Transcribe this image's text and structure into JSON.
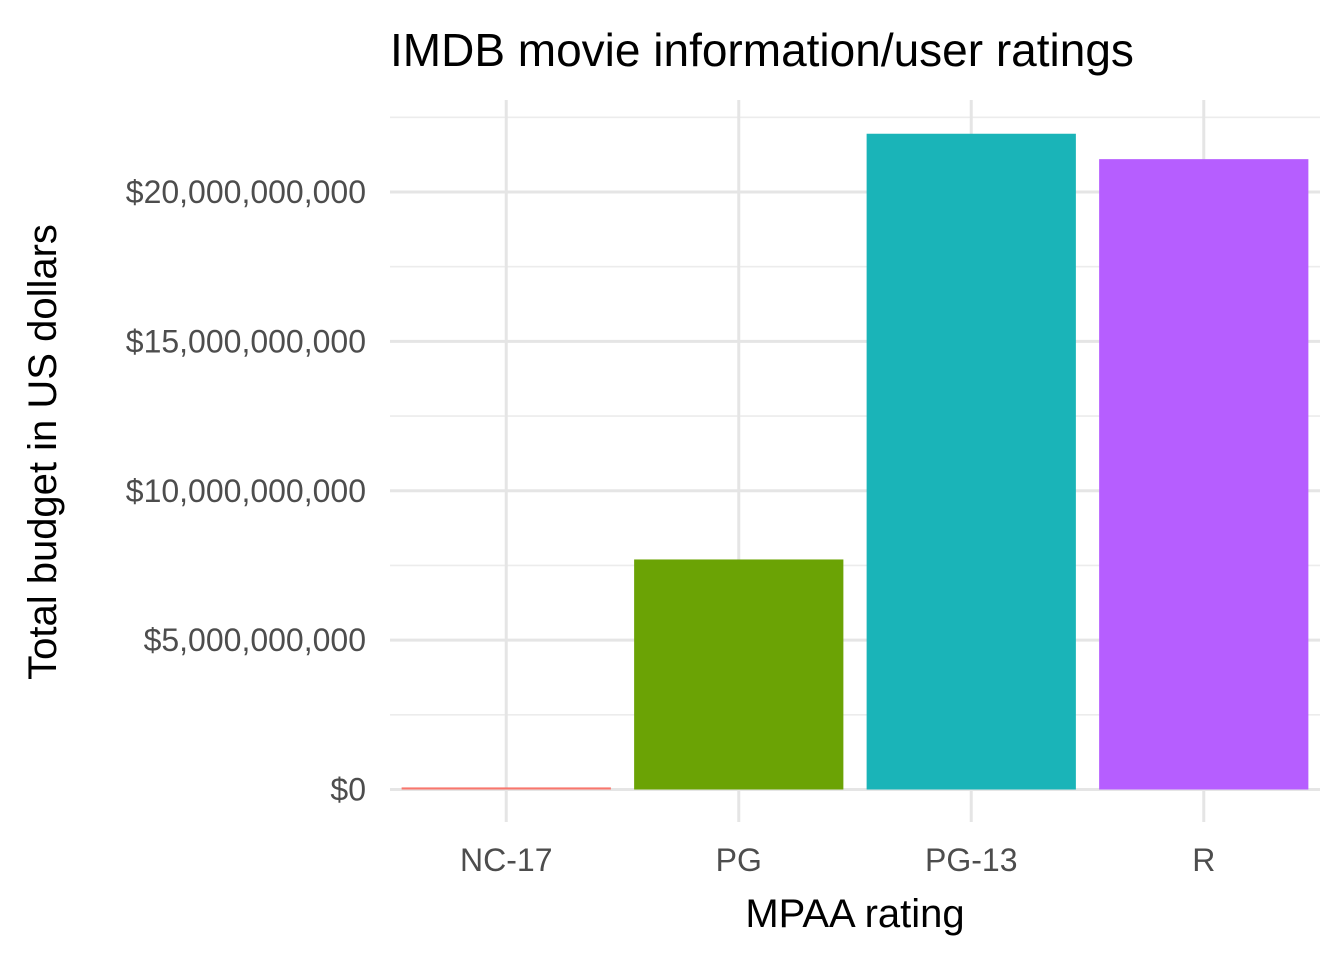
{
  "chart_data": {
    "type": "bar",
    "title": "IMDB movie information/user ratings",
    "xlabel": "MPAA rating",
    "ylabel": "Total budget in US dollars",
    "categories": [
      "NC-17",
      "PG",
      "PG-13",
      "R"
    ],
    "values": [
      70000000,
      7700000000,
      21950000000,
      21100000000
    ],
    "colors": [
      "#F8766D",
      "#6BA305",
      "#1AB4B8",
      "#B65EFF"
    ],
    "ylim": [
      0,
      22600000000
    ],
    "yticks": [
      0,
      5000000000,
      10000000000,
      15000000000,
      20000000000
    ],
    "ytick_labels": [
      "$0",
      "$5,000,000,000",
      "$10,000,000,000",
      "$15,000,000,000",
      "$20,000,000,000"
    ],
    "grid": true,
    "legend": "none"
  }
}
